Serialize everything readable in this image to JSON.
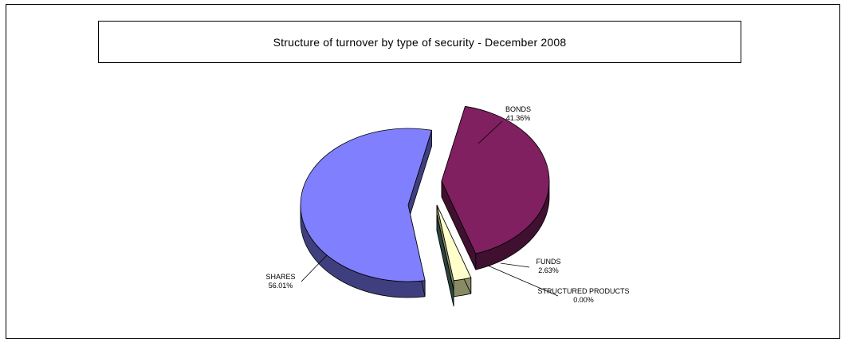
{
  "chart_data": {
    "type": "pie",
    "title": "Structure of turnover by type of security - December 2008",
    "slices": [
      {
        "name": "SHARES",
        "value": 56.01,
        "label": "56.01%",
        "color": "#8080ff"
      },
      {
        "name": "BONDS",
        "value": 41.36,
        "label": "41.36%",
        "color": "#802060"
      },
      {
        "name": "FUNDS",
        "value": 2.63,
        "label": "2.63%",
        "color": "#ffffcc"
      },
      {
        "name": "STRUCTURED PRODUCTS",
        "value": 0.0,
        "label": "0.00%",
        "color": "#4d7a73"
      }
    ],
    "legend": "none",
    "style": "3d-exploded"
  }
}
